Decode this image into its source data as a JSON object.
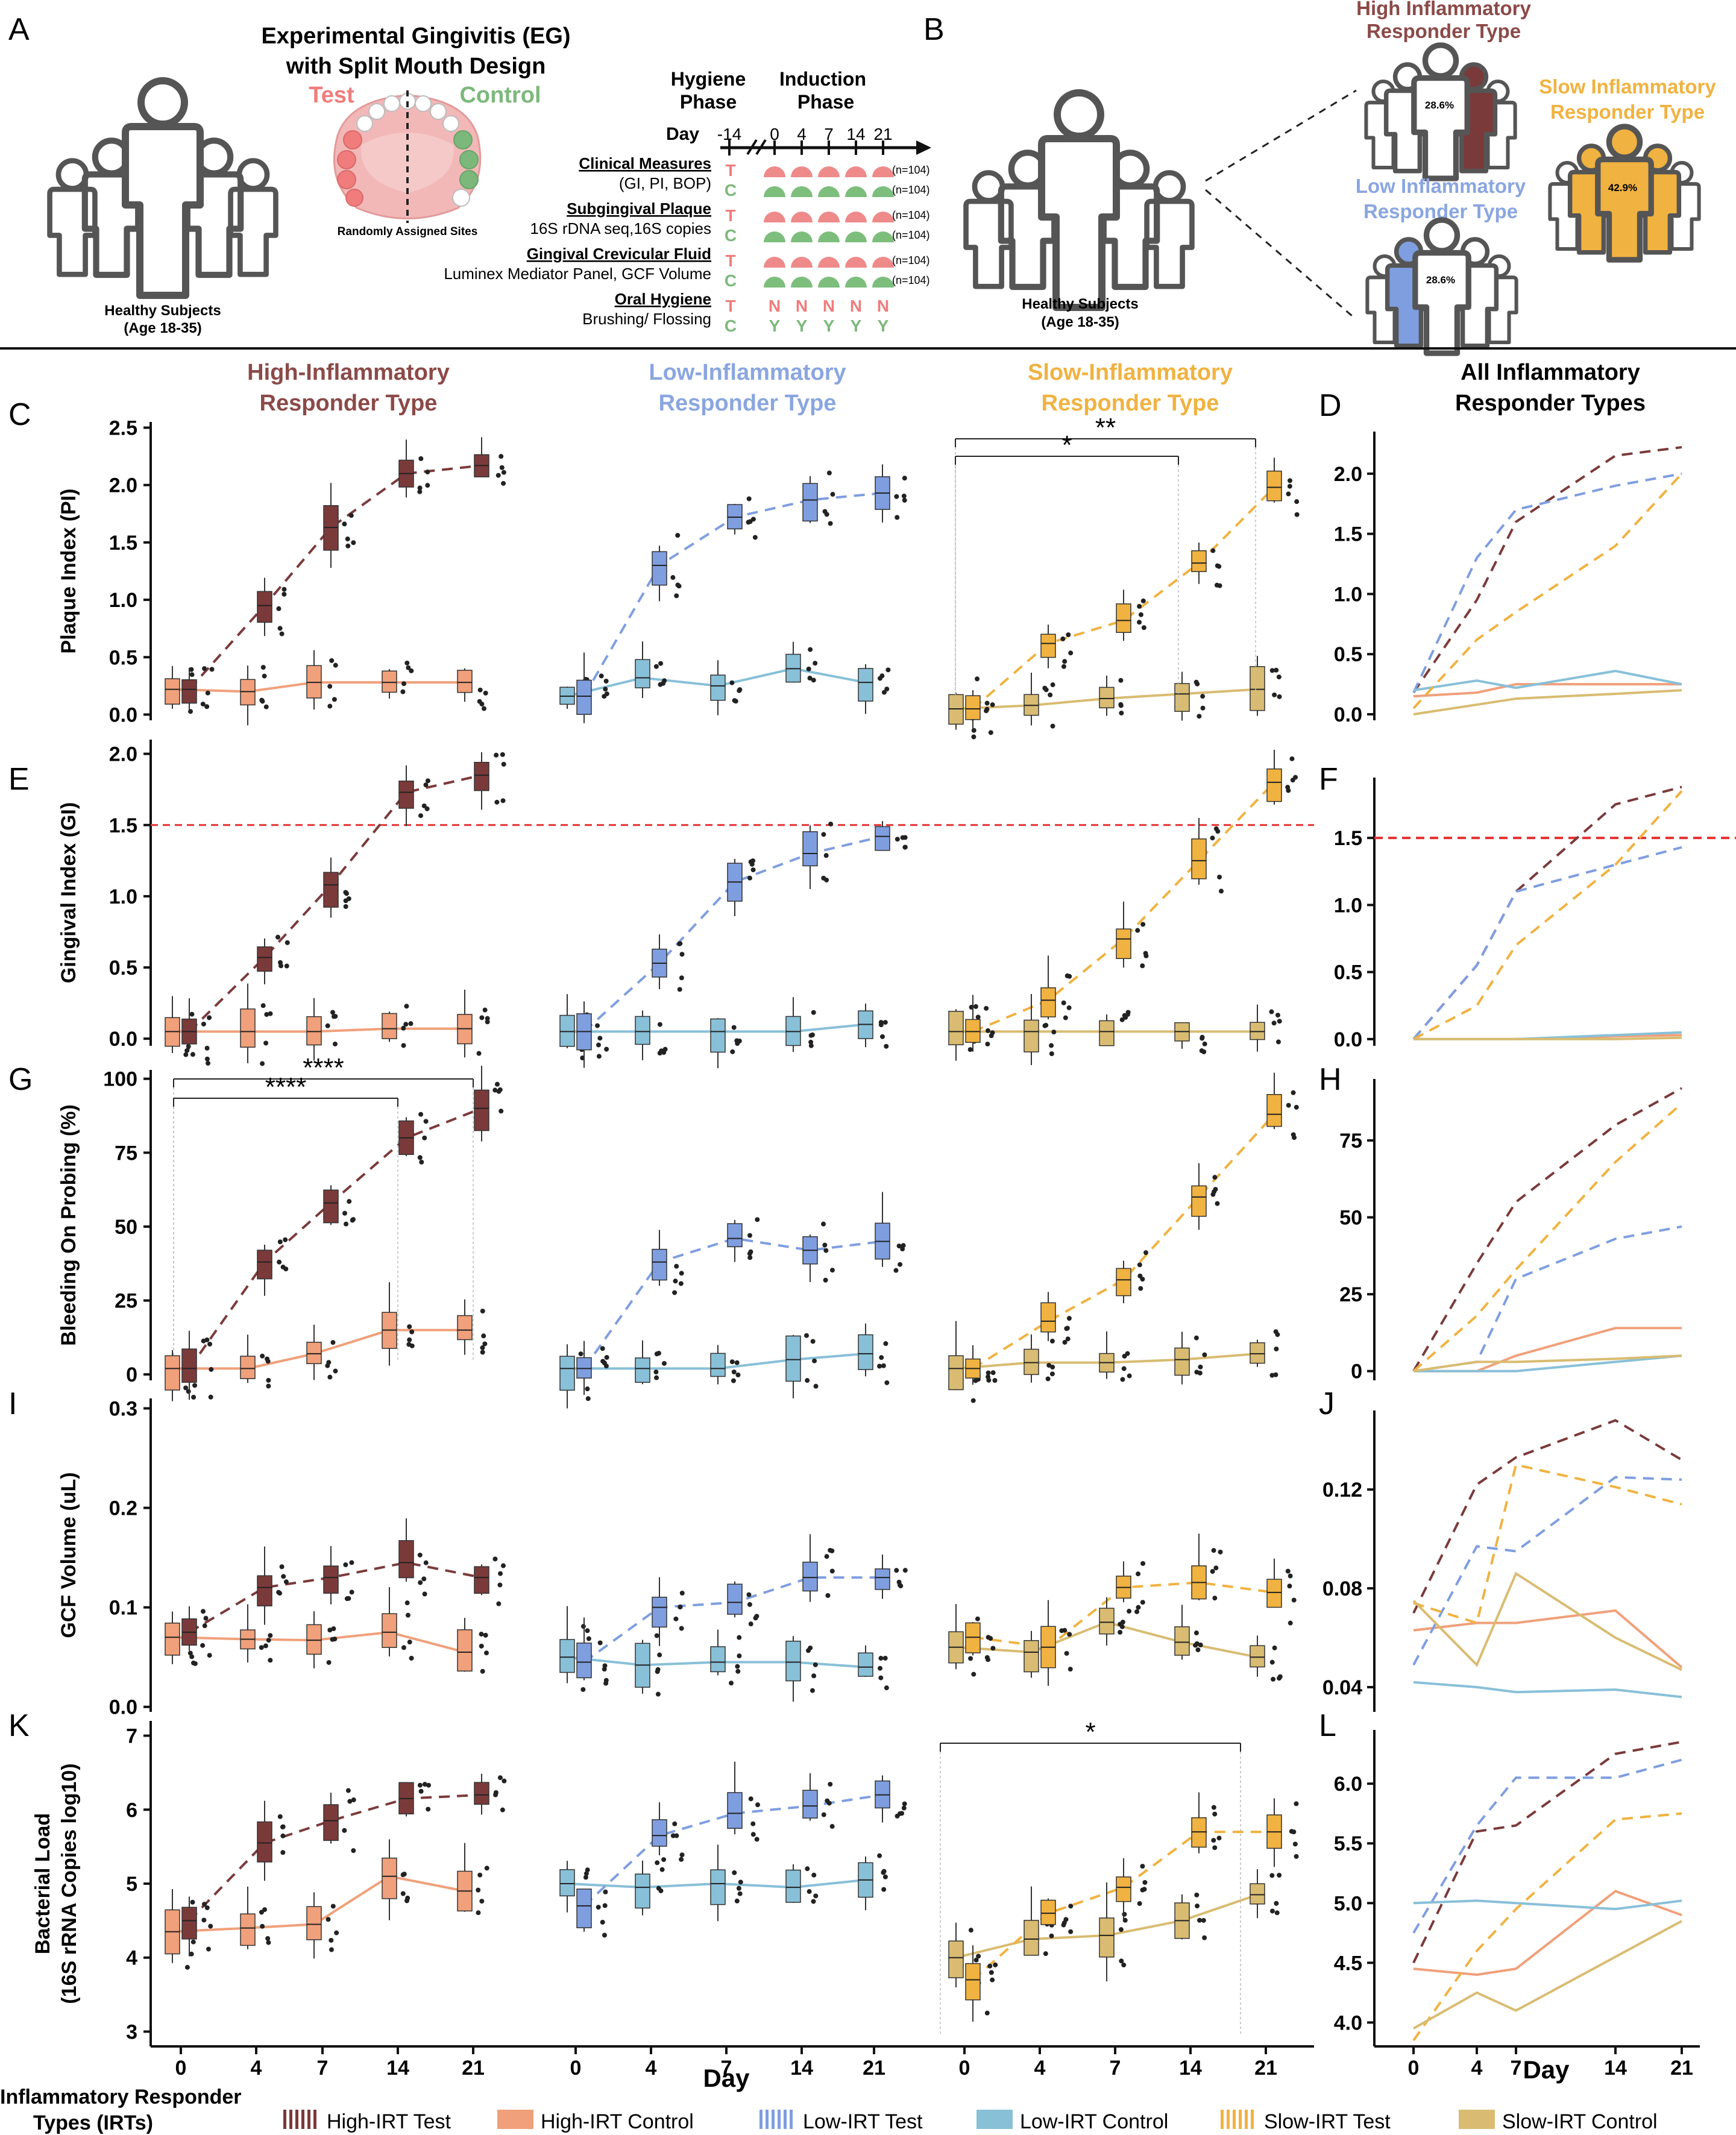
{
  "panel_letters": {
    "A": "A",
    "B": "B",
    "C": "C",
    "D": "D",
    "E": "E",
    "F": "F",
    "G": "G",
    "H": "H",
    "I": "I",
    "J": "J",
    "K": "K",
    "L": "L"
  },
  "panelA": {
    "title1": "Experimental Gingivitis (EG)",
    "title2": "with Split Mouth Design",
    "test": "Test",
    "control": "Control",
    "randomly": "Randomly Assigned Sites",
    "healthy1": "Healthy Subjects",
    "healthy2": "(Age 18-35)",
    "hygiene1": "Hygiene",
    "hygiene2": "Phase",
    "induction1": "Induction",
    "induction2": "Phase",
    "day_label": "Day",
    "day_ticks": [
      "-14",
      "0",
      "4",
      "7",
      "14",
      "21"
    ],
    "rows": [
      {
        "title": "Clinical Measures",
        "sub": "(GI, PI, BOP)",
        "n1": "(n=104)",
        "n2": "(n=104)"
      },
      {
        "title": "Subgingival Plaque",
        "sub": "16S rDNA seq,16S copies",
        "n1": "(n=104)",
        "n2": "(n=104)"
      },
      {
        "title": "Gingival Crevicular Fluid",
        "sub": "Luminex Mediator Panel, GCF Volume",
        "n1": "(n=104)",
        "n2": "(n=104)"
      },
      {
        "title": "Oral Hygiene",
        "sub": "Brushing/ Flossing",
        "n1": "",
        "n2": ""
      }
    ],
    "T": "T",
    "C": "C",
    "oral_test": [
      "N",
      "N",
      "N",
      "N",
      "N"
    ],
    "oral_control": [
      "Y",
      "Y",
      "Y",
      "Y",
      "Y"
    ]
  },
  "panelB": {
    "healthy1": "Healthy Subjects",
    "healthy2": "(Age 18-35)",
    "high1": "High Inflammatory",
    "high2": "Responder Type",
    "high_pct": "28.6%",
    "slow1": "Slow Inflammatory",
    "slow2": "Responder Type",
    "slow_pct": "42.9%",
    "low1": "Low Inflammatory",
    "low2": "Responder Type",
    "low_pct": "28.6%"
  },
  "column_titles": [
    {
      "l1": "High-Inflammatory",
      "l2": "Responder Type"
    },
    {
      "l1": "Low-Inflammatory",
      "l2": "Responder Type"
    },
    {
      "l1": "Slow-Inflammatory",
      "l2": "Responder Type"
    },
    {
      "l1": "All Inflammatory",
      "l2": "Responder Types"
    }
  ],
  "colors": {
    "high_test": "#7b3a3a",
    "high_control": "#f0a07a",
    "low_test": "#7f9ee0",
    "low_control": "#88c0d8",
    "slow_test": "#f0b240",
    "slow_control": "#d9bc72",
    "high_title": "#8b4a48",
    "low_title": "#8aa6e0",
    "slow_title": "#f0b240",
    "test_red": "#f07c7c",
    "control_green": "#7cb87c",
    "threshold": "#e53030"
  },
  "x_axis": {
    "title": "Day",
    "ticks": [
      "0",
      "4",
      "7",
      "14",
      "21"
    ]
  },
  "significance": {
    "C_short": "*",
    "C_long": "**",
    "G_long": "****",
    "G_short": "****",
    "K": "*"
  },
  "legend": {
    "title1": "Inflammatory Responder",
    "title2": "Types (IRTs)",
    "items": [
      "High-IRT Test",
      "High-IRT Control",
      "Low-IRT Test",
      "Low-IRT Control",
      "Slow-IRT Test",
      "Slow-IRT Control"
    ]
  },
  "chart_data": [
    {
      "type": "box",
      "id": "PI",
      "ylabel": "Plaque Index (PI)",
      "ylim": [
        -0.05,
        2.55
      ],
      "yticks": [
        0,
        0.5,
        1,
        1.5,
        2,
        2.5
      ],
      "ytick_labels": [
        "0.0",
        "0.5",
        "1.0",
        "1.5",
        "2.0",
        "2.5"
      ],
      "x": [
        0,
        4,
        7,
        14,
        21
      ],
      "series": [
        {
          "name": "High-IRT Test",
          "values": [
            0.22,
            0.95,
            1.63,
            2.1,
            2.17
          ]
        },
        {
          "name": "High-IRT Control",
          "values": [
            0.22,
            0.2,
            0.28,
            0.28,
            0.28
          ]
        },
        {
          "name": "Low-IRT Test",
          "values": [
            0.16,
            1.3,
            1.72,
            1.87,
            1.93
          ]
        },
        {
          "name": "Low-IRT Control",
          "values": [
            0.16,
            0.32,
            0.25,
            0.4,
            0.28
          ]
        },
        {
          "name": "Slow-IRT Test",
          "values": [
            0.05,
            0.62,
            0.82,
            1.32,
            1.98
          ]
        },
        {
          "name": "Slow-IRT Control",
          "values": [
            0.05,
            0.08,
            0.14,
            0.18,
            0.22
          ]
        }
      ]
    },
    {
      "type": "box",
      "id": "GI",
      "ylabel": "Gingival Index (GI)",
      "ylim": [
        -0.05,
        2.1
      ],
      "yticks": [
        0,
        0.5,
        1,
        1.5,
        2
      ],
      "ytick_labels": [
        "0.0",
        "0.5",
        "1.0",
        "1.5",
        "2.0"
      ],
      "threshold": 1.5,
      "x": [
        0,
        4,
        7,
        14,
        21
      ],
      "series": [
        {
          "name": "High-IRT Test",
          "values": [
            0.05,
            0.57,
            1.08,
            1.73,
            1.85
          ]
        },
        {
          "name": "High-IRT Control",
          "values": [
            0.05,
            0.05,
            0.05,
            0.07,
            0.07
          ]
        },
        {
          "name": "Low-IRT Test",
          "values": [
            0.05,
            0.53,
            1.1,
            1.3,
            1.42
          ]
        },
        {
          "name": "Low-IRT Control",
          "values": [
            0.05,
            0.05,
            0.05,
            0.05,
            0.1
          ]
        },
        {
          "name": "Slow-IRT Test",
          "values": [
            0.05,
            0.27,
            0.7,
            1.25,
            1.8
          ]
        },
        {
          "name": "Slow-IRT Control",
          "values": [
            0.05,
            0.05,
            0.05,
            0.05,
            0.05
          ]
        }
      ]
    },
    {
      "type": "box",
      "id": "BOP",
      "ylabel": "Bleeding On Probing (%)",
      "ylim": [
        -2,
        103
      ],
      "yticks": [
        0,
        25,
        50,
        75,
        100
      ],
      "ytick_labels": [
        "0",
        "25",
        "50",
        "75",
        "100"
      ],
      "x": [
        0,
        4,
        7,
        14,
        21
      ],
      "series": [
        {
          "name": "High-IRT Test",
          "values": [
            2,
            38,
            58,
            80,
            90
          ]
        },
        {
          "name": "High-IRT Control",
          "values": [
            2,
            2,
            7,
            15,
            15
          ]
        },
        {
          "name": "Low-IRT Test",
          "values": [
            2,
            38,
            46,
            42,
            45
          ]
        },
        {
          "name": "Low-IRT Control",
          "values": [
            2,
            2,
            2,
            5,
            7
          ]
        },
        {
          "name": "Slow-IRT Test",
          "values": [
            2,
            18,
            32,
            60,
            88
          ]
        },
        {
          "name": "Slow-IRT Control",
          "values": [
            2,
            4,
            4,
            5,
            7
          ]
        }
      ]
    },
    {
      "type": "box",
      "id": "GCF",
      "ylabel": "GCF Volume (uL)",
      "ylim": [
        -0.005,
        0.31
      ],
      "yticks": [
        0,
        0.1,
        0.2,
        0.3
      ],
      "ytick_labels": [
        "0.0",
        "0.1",
        "0.2",
        "0.3"
      ],
      "x": [
        0,
        4,
        7,
        14,
        21
      ],
      "series": [
        {
          "name": "High-IRT Test",
          "values": [
            0.075,
            0.12,
            0.13,
            0.145,
            0.13
          ]
        },
        {
          "name": "High-IRT Control",
          "values": [
            0.07,
            0.068,
            0.067,
            0.075,
            0.055
          ]
        },
        {
          "name": "Low-IRT Test",
          "values": [
            0.045,
            0.1,
            0.105,
            0.13,
            0.13
          ]
        },
        {
          "name": "Low-IRT Control",
          "values": [
            0.05,
            0.042,
            0.045,
            0.045,
            0.04
          ]
        },
        {
          "name": "Slow-IRT Test",
          "values": [
            0.07,
            0.06,
            0.12,
            0.125,
            0.115
          ]
        },
        {
          "name": "Slow-IRT Control",
          "values": [
            0.06,
            0.055,
            0.085,
            0.065,
            0.05
          ]
        }
      ]
    },
    {
      "type": "box",
      "id": "BL",
      "ylabel": "Bacterial Load",
      "ylabel2": "(16S rRNA Copies log10)",
      "ylim": [
        2.8,
        7.2
      ],
      "yticks": [
        3,
        4,
        5,
        6,
        7
      ],
      "ytick_labels": [
        "3",
        "4",
        "5",
        "6",
        "7"
      ],
      "x": [
        0,
        4,
        7,
        14,
        21
      ],
      "series": [
        {
          "name": "High-IRT Test",
          "values": [
            4.5,
            5.55,
            5.85,
            6.15,
            6.2
          ]
        },
        {
          "name": "High-IRT Control",
          "values": [
            4.35,
            4.4,
            4.45,
            5.1,
            4.9
          ]
        },
        {
          "name": "Low-IRT Test",
          "values": [
            4.7,
            5.65,
            5.95,
            6.05,
            6.2
          ]
        },
        {
          "name": "Low-IRT Control",
          "values": [
            5.0,
            4.95,
            5.0,
            4.95,
            5.05
          ]
        },
        {
          "name": "Slow-IRT Test",
          "values": [
            3.7,
            4.6,
            4.95,
            5.7,
            5.7
          ]
        },
        {
          "name": "Slow-IRT Control",
          "values": [
            4.0,
            4.25,
            4.3,
            4.5,
            4.85
          ]
        }
      ]
    },
    {
      "type": "line",
      "id": "D",
      "ylim": [
        -0.05,
        2.35
      ],
      "yticks": [
        0,
        0.5,
        1,
        1.5,
        2
      ],
      "ytick_labels": [
        "0.0",
        "0.5",
        "1.0",
        "1.5",
        "2.0"
      ],
      "x": [
        0,
        4,
        7,
        14,
        21
      ],
      "series": [
        {
          "name": "High-IRT Test",
          "values": [
            0.18,
            0.95,
            1.6,
            2.15,
            2.22
          ]
        },
        {
          "name": "High-IRT Control",
          "values": [
            0.15,
            0.18,
            0.25,
            0.25,
            0.25
          ]
        },
        {
          "name": "Low-IRT Test",
          "values": [
            0.18,
            1.3,
            1.7,
            1.9,
            2.0
          ]
        },
        {
          "name": "Low-IRT Control",
          "values": [
            0.2,
            0.28,
            0.22,
            0.36,
            0.25
          ]
        },
        {
          "name": "Slow-IRT Test",
          "values": [
            0.05,
            0.62,
            0.85,
            1.4,
            2.0
          ]
        },
        {
          "name": "Slow-IRT Control",
          "values": [
            0.0,
            0.08,
            0.13,
            0.17,
            0.2
          ]
        }
      ]
    },
    {
      "type": "line",
      "id": "F",
      "ylim": [
        -0.05,
        1.95
      ],
      "yticks": [
        0,
        0.5,
        1,
        1.5
      ],
      "ytick_labels": [
        "0.0",
        "0.5",
        "1.0",
        "1.5"
      ],
      "threshold": 1.5,
      "x": [
        0,
        4,
        7,
        14,
        21
      ],
      "series": [
        {
          "name": "High-IRT Test",
          "values": [
            0,
            0.55,
            1.1,
            1.75,
            1.88
          ]
        },
        {
          "name": "High-IRT Control",
          "values": [
            0,
            0,
            0,
            0.02,
            0.03
          ]
        },
        {
          "name": "Low-IRT Test",
          "values": [
            0,
            0.55,
            1.1,
            1.3,
            1.43
          ]
        },
        {
          "name": "Low-IRT Control",
          "values": [
            0,
            0,
            0,
            0.03,
            0.05
          ]
        },
        {
          "name": "Slow-IRT Test",
          "values": [
            0,
            0.25,
            0.7,
            1.3,
            1.85
          ]
        },
        {
          "name": "Slow-IRT Control",
          "values": [
            0,
            0,
            0,
            0,
            0.01
          ]
        }
      ]
    },
    {
      "type": "line",
      "id": "H",
      "ylim": [
        -3,
        95
      ],
      "yticks": [
        0,
        25,
        50,
        75
      ],
      "ytick_labels": [
        "0",
        "25",
        "50",
        "75"
      ],
      "x": [
        0,
        4,
        7,
        14,
        21
      ],
      "series": [
        {
          "name": "High-IRT Test",
          "values": [
            0,
            35,
            55,
            80,
            92
          ]
        },
        {
          "name": "High-IRT Control",
          "values": [
            0,
            0,
            5,
            14,
            14
          ]
        },
        {
          "name": "Low-IRT Test",
          "values": [
            0,
            3,
            30,
            43,
            47
          ]
        },
        {
          "name": "Low-IRT Control",
          "values": [
            0,
            0,
            0,
            3,
            5
          ]
        },
        {
          "name": "Slow-IRT Test",
          "values": [
            0,
            18,
            33,
            68,
            87
          ]
        },
        {
          "name": "Slow-IRT Control",
          "values": [
            0,
            3,
            3,
            4,
            5
          ]
        }
      ]
    },
    {
      "type": "line",
      "id": "J",
      "ylim": [
        0.03,
        0.152
      ],
      "yticks": [
        0.04,
        0.08,
        0.12
      ],
      "ytick_labels": [
        "0.04",
        "0.08",
        "0.12"
      ],
      "x": [
        0,
        4,
        7,
        14,
        21
      ],
      "series": [
        {
          "name": "High-IRT Test",
          "values": [
            0.07,
            0.122,
            0.133,
            0.148,
            0.132
          ]
        },
        {
          "name": "High-IRT Control",
          "values": [
            0.063,
            0.066,
            0.066,
            0.071,
            0.048
          ]
        },
        {
          "name": "Low-IRT Test",
          "values": [
            0.049,
            0.097,
            0.095,
            0.125,
            0.124
          ]
        },
        {
          "name": "Low-IRT Control",
          "values": [
            0.042,
            0.04,
            0.038,
            0.039,
            0.036
          ]
        },
        {
          "name": "Slow-IRT Test",
          "values": [
            0.074,
            0.066,
            0.13,
            0.121,
            0.114
          ]
        },
        {
          "name": "Slow-IRT Control",
          "values": [
            0.075,
            0.049,
            0.086,
            0.06,
            0.047
          ]
        }
      ]
    },
    {
      "type": "line",
      "id": "L",
      "ylim": [
        3.8,
        6.45
      ],
      "yticks": [
        4,
        4.5,
        5,
        5.5,
        6
      ],
      "ytick_labels": [
        "4.0",
        "4.5",
        "5.0",
        "5.5",
        "6.0"
      ],
      "x": [
        0,
        4,
        7,
        14,
        21
      ],
      "series": [
        {
          "name": "High-IRT Test",
          "values": [
            4.5,
            5.6,
            5.65,
            6.25,
            6.35
          ]
        },
        {
          "name": "High-IRT Control",
          "values": [
            4.45,
            4.4,
            4.45,
            5.1,
            4.9
          ]
        },
        {
          "name": "Low-IRT Test",
          "values": [
            4.75,
            5.65,
            6.05,
            6.05,
            6.2
          ]
        },
        {
          "name": "Low-IRT Control",
          "values": [
            5.0,
            5.02,
            5.0,
            4.95,
            5.02
          ]
        },
        {
          "name": "Slow-IRT Test",
          "values": [
            3.85,
            4.6,
            4.95,
            5.7,
            5.75
          ]
        },
        {
          "name": "Slow-IRT Control",
          "values": [
            3.95,
            4.25,
            4.1,
            4.55,
            4.85
          ]
        }
      ]
    }
  ]
}
